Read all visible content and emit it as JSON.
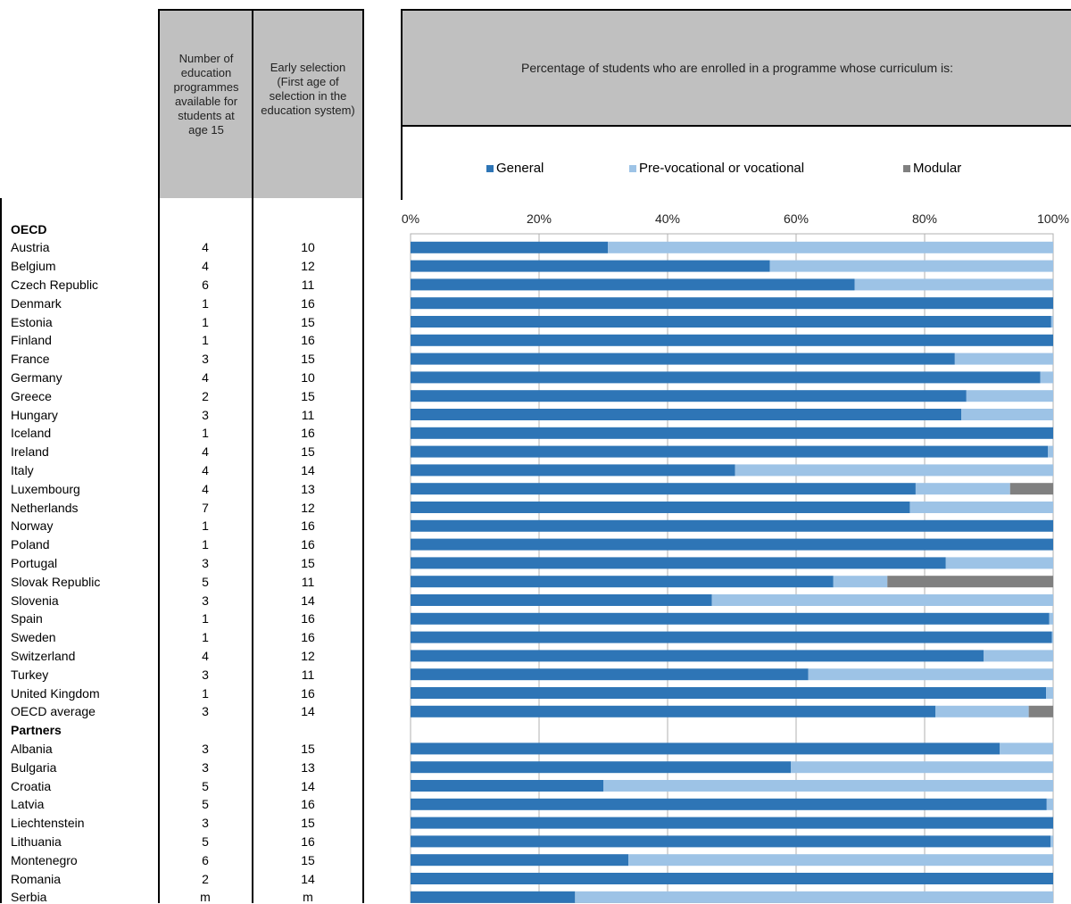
{
  "table": {
    "col1_header": "Number of education programmes available for students at age 15",
    "col2_header": "Early selection (First age of selection in the education system)"
  },
  "chart_data": {
    "type": "bar",
    "orientation": "horizontal",
    "stacked": true,
    "title": "Percentage of students who are enrolled in a programme whose curriculum is:",
    "xlim": [
      0,
      100
    ],
    "x_ticks": [
      "0%",
      "20%",
      "40%",
      "60%",
      "80%",
      "100%"
    ],
    "grid": true,
    "legend_position": "top",
    "series": [
      {
        "name": "General",
        "color": "#2e75b6"
      },
      {
        "name": "Pre-vocational or vocational",
        "color": "#9dc3e6"
      },
      {
        "name": "Modular",
        "color": "#808080"
      }
    ],
    "groups": [
      {
        "label": "OECD",
        "rows": [
          {
            "country": "Austria",
            "programmes": "4",
            "selection_age": "10",
            "general": 30.7,
            "vocational": 69.3,
            "modular": 0
          },
          {
            "country": "Belgium",
            "programmes": "4",
            "selection_age": "12",
            "general": 55.9,
            "vocational": 44.1,
            "modular": 0
          },
          {
            "country": "Czech Republic",
            "programmes": "6",
            "selection_age": "11",
            "general": 69.1,
            "vocational": 30.9,
            "modular": 0
          },
          {
            "country": "Denmark",
            "programmes": "1",
            "selection_age": "16",
            "general": 100,
            "vocational": 0,
            "modular": 0
          },
          {
            "country": "Estonia",
            "programmes": "1",
            "selection_age": "15",
            "general": 99.7,
            "vocational": 0.3,
            "modular": 0
          },
          {
            "country": "Finland",
            "programmes": "1",
            "selection_age": "16",
            "general": 100,
            "vocational": 0,
            "modular": 0
          },
          {
            "country": "France",
            "programmes": "3",
            "selection_age": "15",
            "general": 84.7,
            "vocational": 15.3,
            "modular": 0
          },
          {
            "country": "Germany",
            "programmes": "4",
            "selection_age": "10",
            "general": 98.0,
            "vocational": 2.0,
            "modular": 0
          },
          {
            "country": "Greece",
            "programmes": "2",
            "selection_age": "15",
            "general": 86.5,
            "vocational": 13.5,
            "modular": 0
          },
          {
            "country": "Hungary",
            "programmes": "3",
            "selection_age": "11",
            "general": 85.7,
            "vocational": 14.3,
            "modular": 0
          },
          {
            "country": "Iceland",
            "programmes": "1",
            "selection_age": "16",
            "general": 100,
            "vocational": 0,
            "modular": 0
          },
          {
            "country": "Ireland",
            "programmes": "4",
            "selection_age": "15",
            "general": 99.2,
            "vocational": 0.8,
            "modular": 0
          },
          {
            "country": "Italy",
            "programmes": "4",
            "selection_age": "14",
            "general": 50.5,
            "vocational": 49.5,
            "modular": 0
          },
          {
            "country": "Luxembourg",
            "programmes": "4",
            "selection_age": "13",
            "general": 78.6,
            "vocational": 14.7,
            "modular": 6.7
          },
          {
            "country": "Netherlands",
            "programmes": "7",
            "selection_age": "12",
            "general": 77.7,
            "vocational": 22.3,
            "modular": 0
          },
          {
            "country": "Norway",
            "programmes": "1",
            "selection_age": "16",
            "general": 100,
            "vocational": 0,
            "modular": 0
          },
          {
            "country": "Poland",
            "programmes": "1",
            "selection_age": "16",
            "general": 100,
            "vocational": 0,
            "modular": 0
          },
          {
            "country": "Portugal",
            "programmes": "3",
            "selection_age": "15",
            "general": 83.3,
            "vocational": 16.7,
            "modular": 0
          },
          {
            "country": "Slovak Republic",
            "programmes": "5",
            "selection_age": "11",
            "general": 65.8,
            "vocational": 8.4,
            "modular": 25.8
          },
          {
            "country": "Slovenia",
            "programmes": "3",
            "selection_age": "14",
            "general": 46.9,
            "vocational": 53.1,
            "modular": 0
          },
          {
            "country": "Spain",
            "programmes": "1",
            "selection_age": "16",
            "general": 99.4,
            "vocational": 0.6,
            "modular": 0
          },
          {
            "country": "Sweden",
            "programmes": "1",
            "selection_age": "16",
            "general": 99.8,
            "vocational": 0.2,
            "modular": 0
          },
          {
            "country": "Switzerland",
            "programmes": "4",
            "selection_age": "12",
            "general": 89.2,
            "vocational": 10.8,
            "modular": 0
          },
          {
            "country": "Turkey",
            "programmes": "3",
            "selection_age": "11",
            "general": 61.9,
            "vocational": 38.1,
            "modular": 0
          },
          {
            "country": "United Kingdom",
            "programmes": "1",
            "selection_age": "16",
            "general": 98.9,
            "vocational": 1.1,
            "modular": 0
          },
          {
            "country": "OECD average",
            "programmes": "3",
            "selection_age": "14",
            "general": 81.7,
            "vocational": 14.5,
            "modular": 3.8
          }
        ]
      },
      {
        "label": "Partners",
        "rows": [
          {
            "country": "Albania",
            "programmes": "3",
            "selection_age": "15",
            "general": 91.7,
            "vocational": 8.3,
            "modular": 0
          },
          {
            "country": "Bulgaria",
            "programmes": "3",
            "selection_age": "13",
            "general": 59.2,
            "vocational": 40.8,
            "modular": 0
          },
          {
            "country": "Croatia",
            "programmes": "5",
            "selection_age": "14",
            "general": 30.0,
            "vocational": 70.0,
            "modular": 0
          },
          {
            "country": "Latvia",
            "programmes": "5",
            "selection_age": "16",
            "general": 99.0,
            "vocational": 1.0,
            "modular": 0
          },
          {
            "country": "Liechtenstein",
            "programmes": "3",
            "selection_age": "15",
            "general": 100,
            "vocational": 0,
            "modular": 0
          },
          {
            "country": "Lithuania",
            "programmes": "5",
            "selection_age": "16",
            "general": 99.6,
            "vocational": 0.4,
            "modular": 0
          },
          {
            "country": "Montenegro",
            "programmes": "6",
            "selection_age": "15",
            "general": 33.9,
            "vocational": 66.1,
            "modular": 0
          },
          {
            "country": "Romania",
            "programmes": "2",
            "selection_age": "14",
            "general": 100,
            "vocational": 0,
            "modular": 0
          },
          {
            "country": "Serbia",
            "programmes": "m",
            "selection_age": "m",
            "general": 25.6,
            "vocational": 74.4,
            "modular": 0
          }
        ]
      }
    ]
  }
}
